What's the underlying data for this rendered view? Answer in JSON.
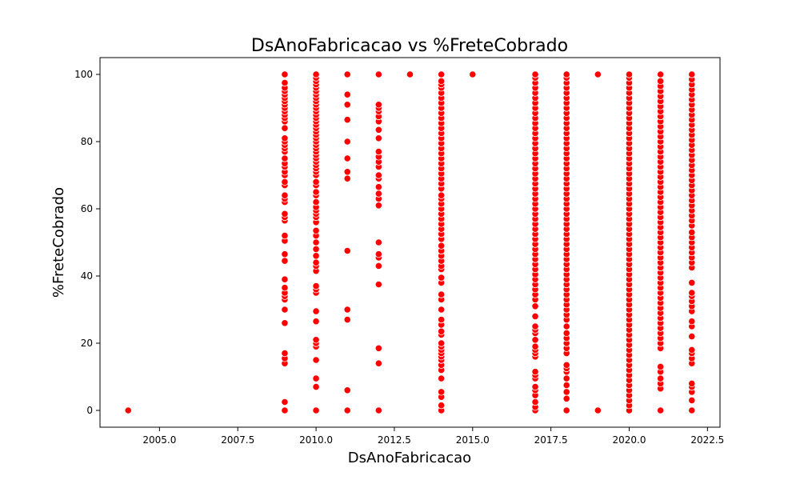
{
  "chart_data": {
    "type": "scatter",
    "title": "DsAnoFabricacao vs %FreteCobrado",
    "xlabel": "DsAnoFabricacao",
    "ylabel": "%FreteCobrado",
    "xlim": [
      2003.1,
      2022.9
    ],
    "ylim": [
      -5,
      105
    ],
    "xticks": [
      2005.0,
      2007.5,
      2010.0,
      2012.5,
      2015.0,
      2017.5,
      2020.0,
      2022.5
    ],
    "xtick_labels": [
      "2005.0",
      "2007.5",
      "2010.0",
      "2012.5",
      "2015.0",
      "2017.5",
      "2020.0",
      "2022.5"
    ],
    "yticks": [
      0,
      20,
      40,
      60,
      80,
      100
    ],
    "ytick_labels": [
      "0",
      "20",
      "40",
      "60",
      "80",
      "100"
    ],
    "grid": false,
    "marker_color": "#ff0000",
    "marker_edge_color": "#ffffff",
    "series": [
      {
        "values": [
          {
            "x": 2004,
            "y": [
              0
            ]
          },
          {
            "x": 2009,
            "y": [
              0,
              2.5,
              14,
              15.5,
              17,
              26,
              30,
              33,
              34,
              35,
              36.5,
              39,
              44.5,
              46.5,
              50.5,
              52,
              56.5,
              57.5,
              58.5,
              62,
              63,
              64,
              67,
              68,
              70,
              71,
              72.5,
              73.5,
              75,
              77,
              78,
              79,
              80,
              81,
              84,
              86,
              87,
              88,
              89,
              90,
              91,
              92,
              93,
              94,
              95,
              96,
              97.5,
              100
            ]
          },
          {
            "x": 2010,
            "y": [
              0,
              7,
              9.5,
              15,
              19,
              20,
              21,
              26.5,
              29.5,
              35,
              36,
              37,
              41.5,
              43,
              44,
              46,
              48,
              50,
              52,
              53.5,
              56,
              57.5,
              58.5,
              59.5,
              60.5,
              62,
              64,
              65,
              67,
              68,
              70,
              71,
              72,
              73,
              74,
              75,
              76,
              77,
              78,
              79,
              80,
              81,
              82,
              83,
              84,
              85,
              86,
              87,
              88,
              89,
              90,
              91,
              92,
              93,
              94,
              95,
              96,
              97,
              98,
              99,
              100
            ]
          },
          {
            "x": 2011,
            "y": [
              0,
              6,
              27,
              30,
              47.5,
              69,
              71,
              75,
              80,
              86.5,
              91,
              94,
              100
            ]
          },
          {
            "x": 2012,
            "y": [
              0,
              14,
              18.5,
              37.5,
              43,
              45.5,
              46.5,
              50,
              61,
              63,
              64.5,
              66.5,
              69,
              70,
              72.5,
              74,
              75.5,
              77,
              81,
              83.5,
              86,
              87.5,
              89,
              90,
              91,
              100
            ]
          },
          {
            "x": 2013,
            "y": [
              100
            ]
          },
          {
            "x": 2015,
            "y": [
              100
            ]
          },
          {
            "x": 2014,
            "y": [
              0,
              1.5,
              4,
              5.5,
              9.5,
              12,
              13.5,
              15,
              16,
              17,
              18,
              19,
              20,
              22.5,
              23.5,
              25.5,
              27,
              30,
              33,
              34.5,
              38,
              39.5,
              42,
              43,
              44.5,
              46,
              47.5,
              49,
              51,
              52.5,
              54,
              55.5,
              57,
              58.5,
              60,
              61.5,
              63,
              64,
              66,
              67.5,
              69,
              70.5,
              72,
              73.5,
              75,
              76.5,
              78,
              79.5,
              81,
              82.5,
              84,
              85.5,
              87,
              88.5,
              90,
              91.5,
              93,
              94.5,
              96,
              97,
              98,
              100
            ]
          },
          {
            "x": 2017,
            "y": [
              0,
              1,
              2.5,
              4.5,
              6,
              7,
              9.5,
              10.5,
              11.5,
              16,
              17,
              18,
              19,
              21,
              23,
              24,
              25,
              28,
              31,
              33,
              34.5,
              36,
              37.5,
              39,
              40.5,
              42,
              43.5,
              45,
              46.5,
              48,
              49.5,
              51,
              52.5,
              54,
              55.5,
              57,
              58.5,
              60,
              61.5,
              63,
              64.5,
              66,
              67.5,
              69,
              70.5,
              72,
              73.5,
              75,
              76.5,
              78,
              79.5,
              81,
              82.5,
              84,
              85.5,
              87,
              88.5,
              90,
              91.5,
              93,
              94.5,
              96,
              97.5,
              99,
              100
            ]
          },
          {
            "x": 2018,
            "y": [
              0,
              3.5,
              5.5,
              7.5,
              9.5,
              11.5,
              12.5,
              13.5,
              17,
              18.5,
              20,
              21.5,
              23,
              25,
              27,
              28.5,
              30,
              31.5,
              33,
              34.5,
              36,
              37.5,
              39,
              40.5,
              42,
              43.5,
              45,
              46.5,
              48,
              49.5,
              51,
              52.5,
              54,
              55.5,
              57,
              58.5,
              60,
              61.5,
              63,
              64.5,
              66,
              67.5,
              69,
              70.5,
              72,
              73.5,
              75,
              76.5,
              78,
              79.5,
              81,
              82.5,
              84,
              85.5,
              87,
              88.5,
              90,
              91.5,
              93,
              94.5,
              96,
              97.5,
              99,
              100
            ]
          },
          {
            "x": 2019,
            "y": [
              0,
              100
            ]
          },
          {
            "x": 2020,
            "y": [
              0,
              1.5,
              3,
              4.5,
              6,
              7.5,
              9,
              10.5,
              12,
              13.5,
              15,
              16.5,
              18,
              19.5,
              21,
              22.5,
              24,
              25.5,
              27,
              28.5,
              30,
              31.5,
              33,
              34.5,
              36,
              37.5,
              39,
              40.5,
              42,
              43.5,
              45,
              46.5,
              48,
              49.5,
              51,
              52.5,
              54,
              55.5,
              57,
              58.5,
              60,
              61.5,
              63,
              64.5,
              66,
              67.5,
              69,
              70.5,
              72,
              73.5,
              75,
              76.5,
              78,
              79.5,
              81,
              82.5,
              84,
              85.5,
              87,
              88.5,
              90,
              91.5,
              93,
              94.5,
              96,
              97.5,
              99,
              100
            ]
          },
          {
            "x": 2021,
            "y": [
              0,
              6.5,
              8,
              9.5,
              11.5,
              13,
              18.5,
              20,
              21.5,
              23,
              24.5,
              26,
              27.5,
              29,
              30.5,
              32,
              33.5,
              35,
              36.5,
              38,
              39.5,
              41,
              42.5,
              44,
              45.5,
              47,
              48.5,
              50,
              51.5,
              53,
              54.5,
              56,
              57.5,
              59,
              60.5,
              62,
              63.5,
              65,
              66.5,
              68,
              69.5,
              71,
              72.5,
              74,
              75.5,
              77,
              78.5,
              80,
              81.5,
              83,
              84.5,
              86,
              87.5,
              89,
              90.5,
              92,
              93.5,
              95,
              96.5,
              98,
              100
            ]
          },
          {
            "x": 2022,
            "y": [
              0,
              3,
              5.5,
              7,
              8,
              14,
              15.5,
              17,
              18,
              22,
              25,
              26.5,
              29.5,
              31,
              32.5,
              34,
              35,
              38,
              42.5,
              44,
              45.5,
              47,
              48.5,
              50,
              51.5,
              53,
              55,
              56.5,
              58,
              59.5,
              61,
              62.5,
              64,
              65.5,
              67,
              68.5,
              70,
              71.5,
              73,
              74.5,
              76,
              77.5,
              79,
              80.5,
              82,
              83.5,
              85,
              86.5,
              88,
              89.5,
              91,
              92.5,
              94,
              95.5,
              97,
              98.5,
              100
            ]
          }
        ]
      }
    ]
  }
}
